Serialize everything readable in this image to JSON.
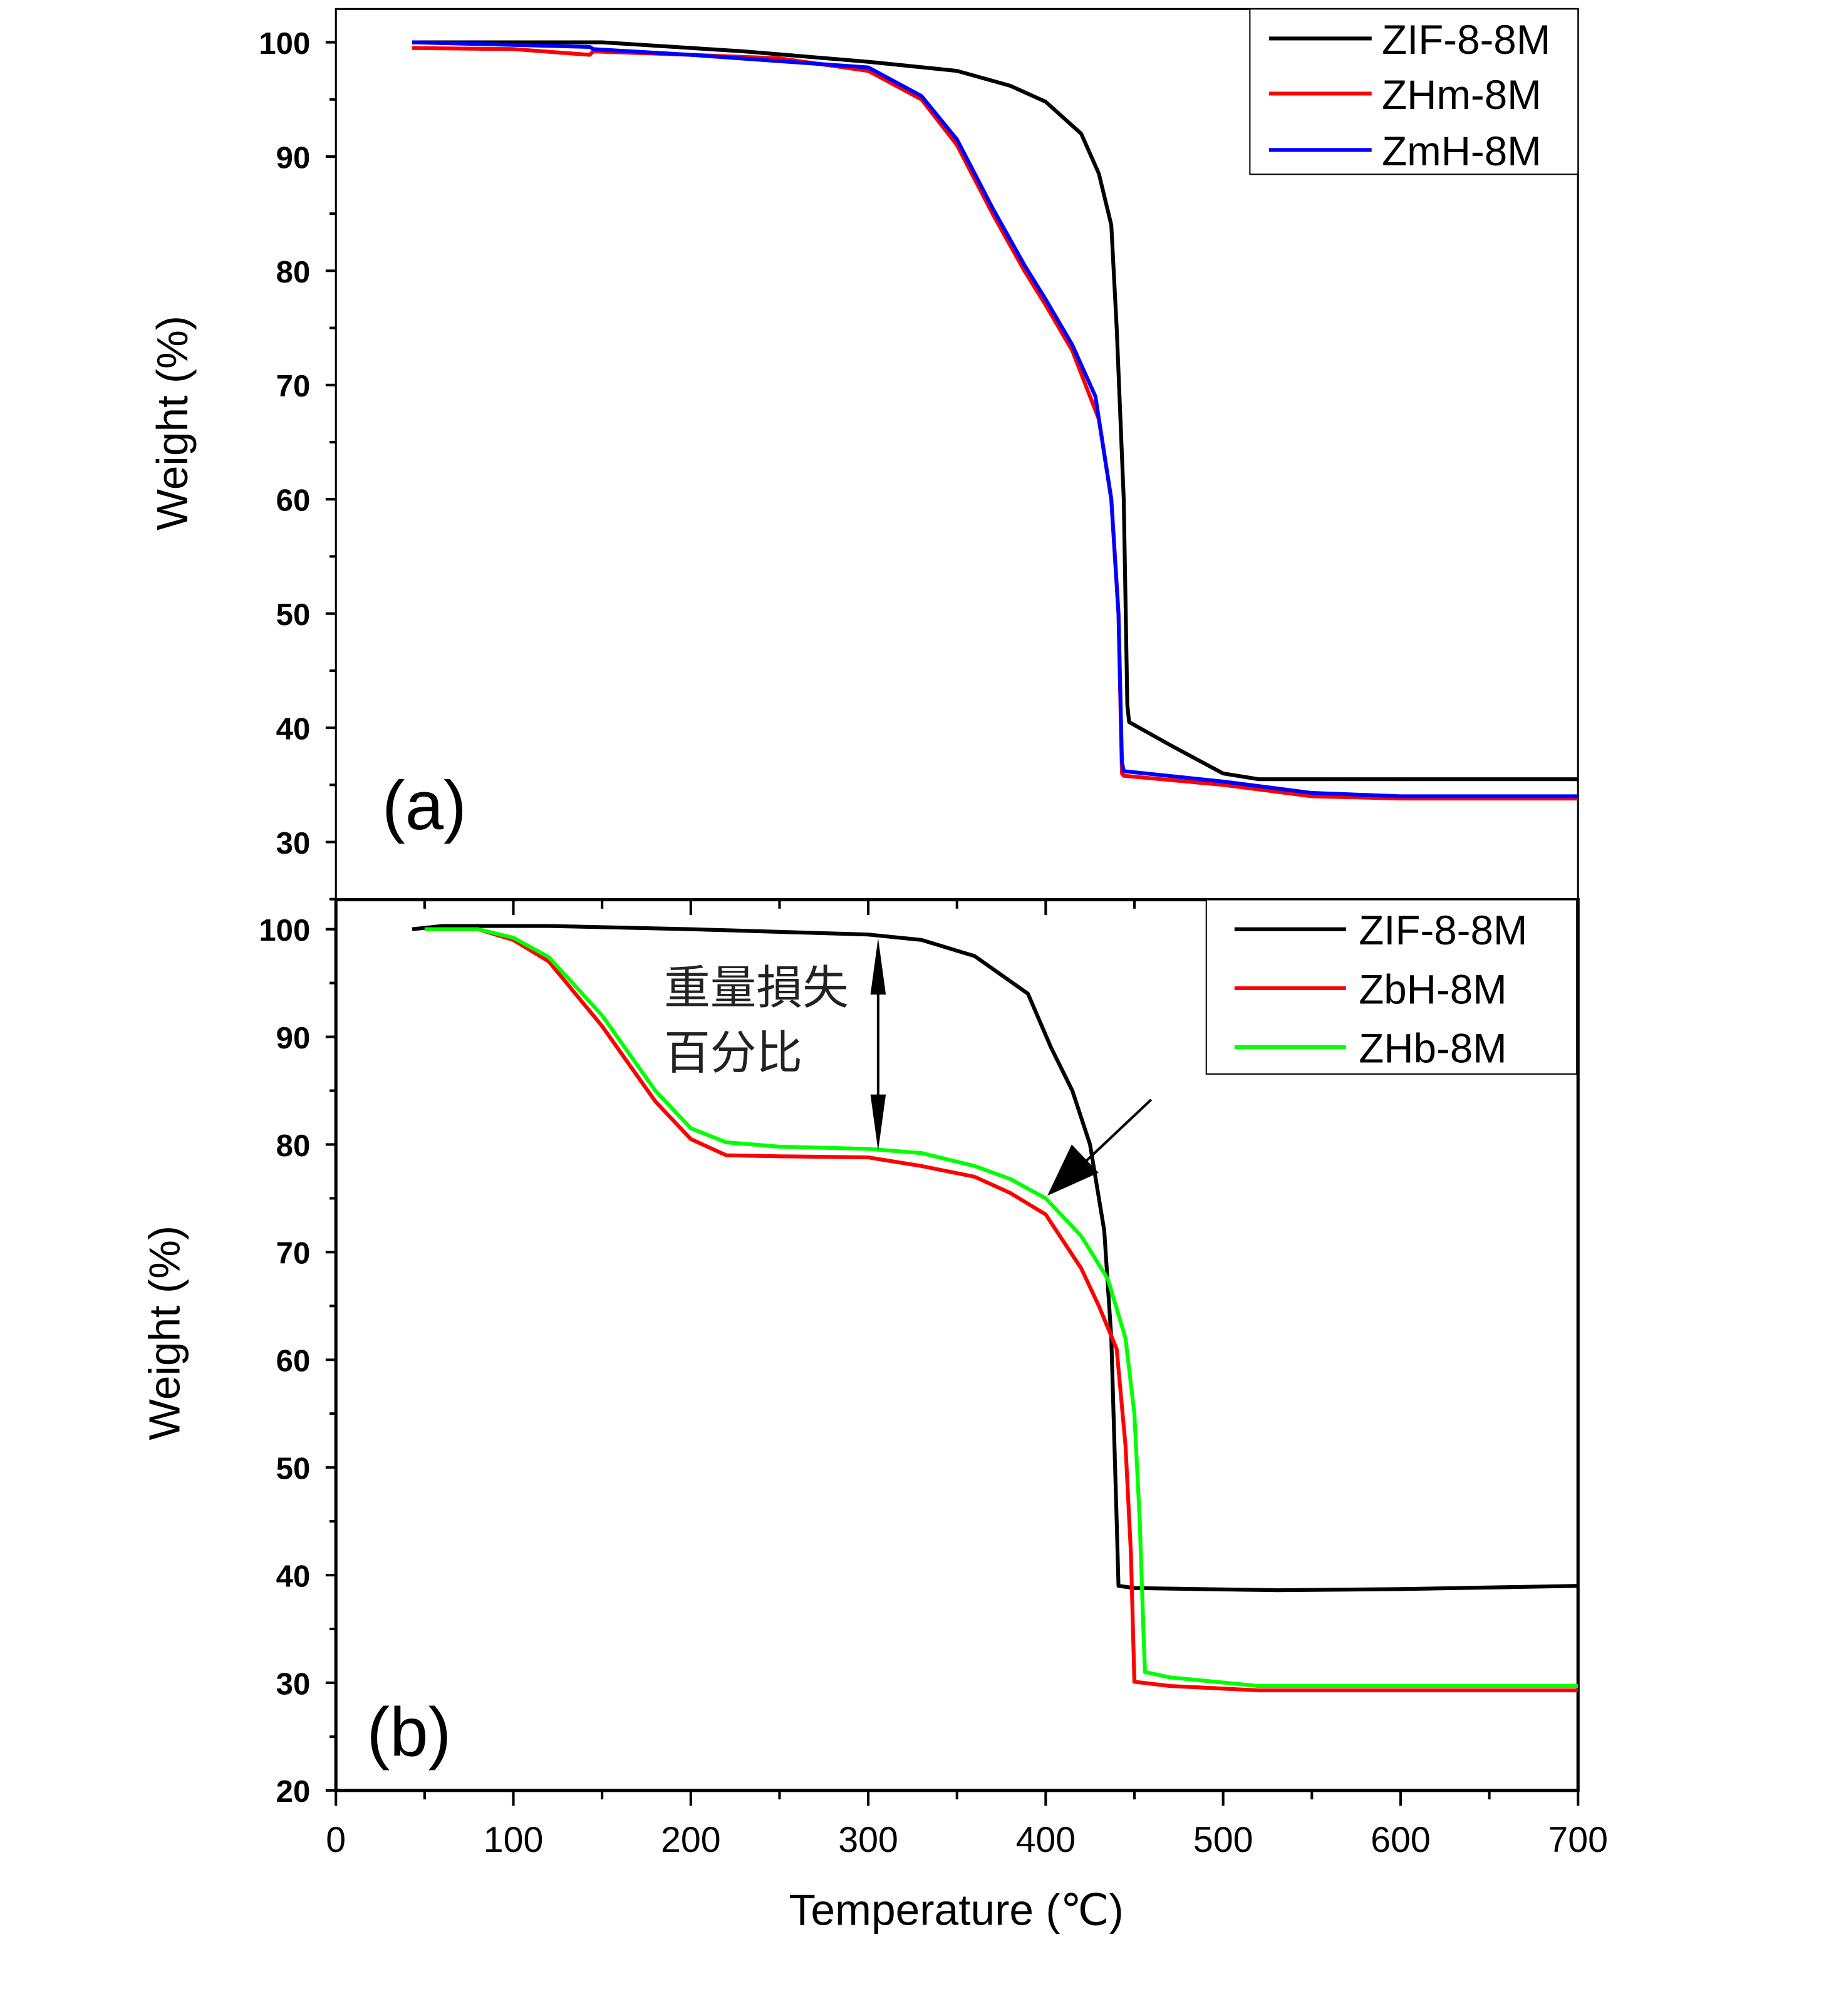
{
  "chart_data": [
    {
      "type": "line",
      "panel_label": "(a)",
      "xlabel": "",
      "ylabel": "Weight (%)",
      "xlim": [
        0,
        700
      ],
      "ylim": [
        25,
        103
      ],
      "yticks": [
        30,
        40,
        50,
        60,
        70,
        80,
        90,
        100
      ],
      "legend_position": "top-right",
      "series": [
        {
          "name": "ZIF-8-8M",
          "color": "#000000",
          "x": [
            43,
            150,
            230,
            300,
            350,
            380,
            400,
            420,
            430,
            437,
            440,
            444,
            446,
            447,
            470,
            500,
            520,
            700
          ],
          "y": [
            100,
            100,
            99.2,
            98.3,
            97.5,
            96.2,
            94.8,
            92,
            88.5,
            84,
            75,
            60,
            42,
            40.5,
            38.5,
            36,
            35.5,
            35.5
          ]
        },
        {
          "name": "ZHm-8M",
          "color": "#ff0000",
          "x": [
            43,
            100,
            143,
            145,
            200,
            250,
            300,
            330,
            350,
            370,
            388,
            400,
            415,
            430,
            437,
            441,
            443,
            444,
            500,
            550,
            600,
            700
          ],
          "y": [
            99.5,
            99.4,
            98.9,
            99.2,
            98.9,
            98.6,
            97.5,
            95,
            91,
            85,
            80,
            77,
            73,
            67,
            60,
            50,
            36,
            35.8,
            35,
            34,
            33.8,
            33.8
          ]
        },
        {
          "name": "ZmH-8M",
          "color": "#0000ff",
          "x": [
            43,
            143,
            145,
            200,
            300,
            330,
            350,
            370,
            388,
            400,
            415,
            428,
            437,
            441,
            443,
            444,
            500,
            550,
            600,
            700
          ],
          "y": [
            100,
            99.6,
            99.4,
            98.9,
            97.8,
            95.3,
            91.5,
            85.5,
            80.5,
            77.5,
            73.5,
            69,
            60,
            50,
            37,
            36.2,
            35.3,
            34.3,
            34,
            34
          ]
        }
      ]
    },
    {
      "type": "line",
      "panel_label": "(b)",
      "xlabel": "Temperature (℃)",
      "ylabel": "Weight (%)",
      "xlim": [
        0,
        700
      ],
      "ylim": [
        20,
        102.7
      ],
      "xticks": [
        0,
        100,
        200,
        300,
        400,
        500,
        600,
        700
      ],
      "yticks": [
        20,
        30,
        40,
        50,
        60,
        70,
        80,
        90,
        100
      ],
      "legend_position": "top-right",
      "annotations": {
        "line1": "重量損失",
        "line2": "百分比"
      },
      "series": [
        {
          "name": "ZIF-8-8M",
          "color": "#000000",
          "x": [
            43,
            60,
            120,
            200,
            300,
            330,
            360,
            390,
            403,
            415,
            425,
            433,
            437,
            440,
            441,
            450,
            530,
            600,
            700
          ],
          "y": [
            100,
            100.3,
            100.3,
            100,
            99.5,
            99,
            97.5,
            94,
            89,
            85,
            80,
            72,
            62,
            45,
            39,
            38.8,
            38.6,
            38.7,
            39
          ]
        },
        {
          "name": "ZbH-8M",
          "color": "#ff0000",
          "x": [
            50,
            80,
            100,
            120,
            150,
            180,
            200,
            220,
            250,
            300,
            330,
            360,
            380,
            400,
            420,
            430,
            440,
            445,
            448,
            450,
            470,
            520,
            700
          ],
          "y": [
            100,
            100,
            99,
            97,
            91,
            84,
            80.5,
            79,
            78.9,
            78.8,
            78,
            77,
            75.5,
            73.5,
            68.5,
            65,
            61,
            52,
            42,
            30.1,
            29.7,
            29.3,
            29.3
          ]
        },
        {
          "name": "ZHb-8M",
          "color": "#00ff00",
          "x": [
            50,
            80,
            100,
            120,
            150,
            180,
            200,
            220,
            250,
            300,
            330,
            360,
            380,
            400,
            420,
            435,
            445,
            450,
            453,
            455,
            456,
            470,
            520,
            700
          ],
          "y": [
            100,
            100,
            99.2,
            97.4,
            92,
            85,
            81.5,
            80.2,
            79.8,
            79.6,
            79.2,
            78,
            76.8,
            75,
            71.5,
            67.5,
            62,
            55,
            45,
            35,
            31,
            30.5,
            29.7,
            29.7
          ]
        }
      ]
    }
  ]
}
